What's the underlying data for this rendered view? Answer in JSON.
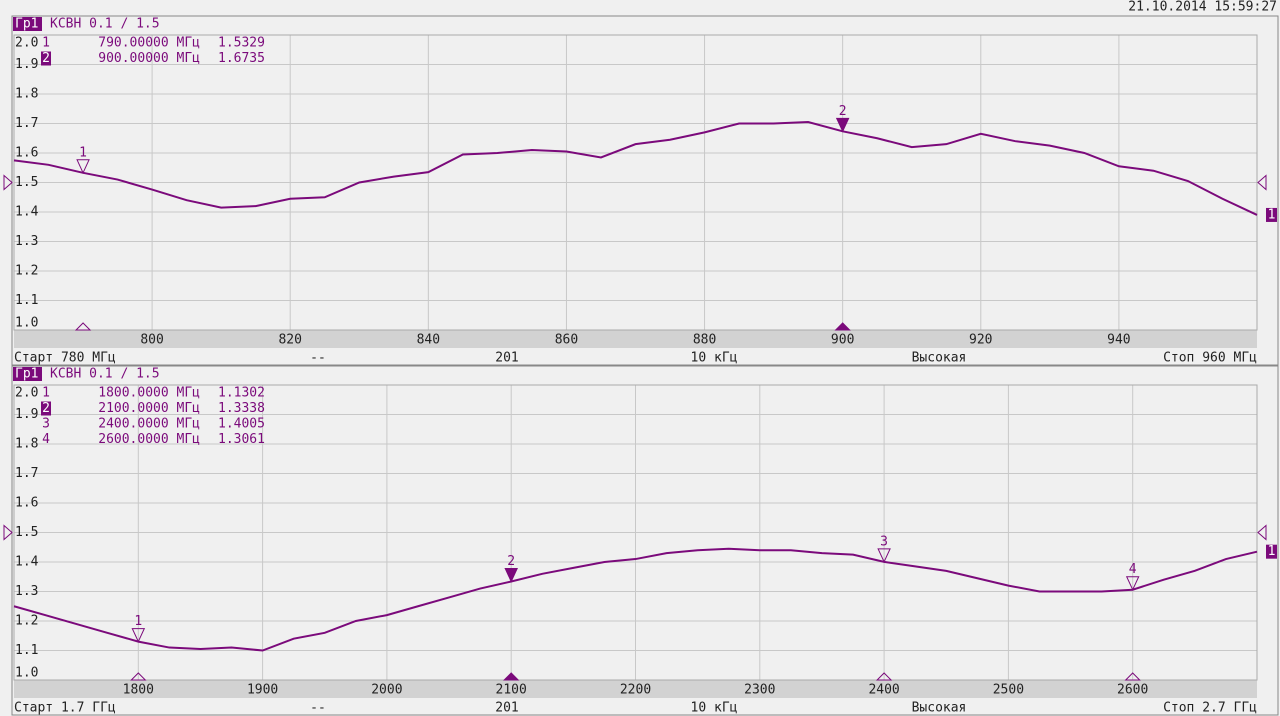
{
  "timestamp": "21.10.2014 15:59:27",
  "chart_data": [
    {
      "type": "line",
      "trace_label": "Гр1",
      "title": "КСВН 0.1 / 1.5",
      "reference": 1.5,
      "grid": true,
      "xlim": [
        780,
        960
      ],
      "xticks": [
        800,
        820,
        840,
        860,
        880,
        900,
        920,
        940
      ],
      "ylim": [
        1.0,
        2.0
      ],
      "yticks": [
        {
          "value": 1.0,
          "label": "1.0"
        },
        1.1,
        1.2,
        1.3,
        1.4,
        1.5,
        1.6,
        1.7,
        1.8,
        1.9,
        {
          "value": 2.0,
          "label": "2.0"
        }
      ],
      "x": [
        780,
        785,
        790,
        795,
        800,
        805,
        810,
        815,
        820,
        825,
        830,
        835,
        840,
        845,
        850,
        855,
        860,
        865,
        870,
        875,
        880,
        885,
        890,
        895,
        900,
        905,
        910,
        915,
        920,
        925,
        930,
        935,
        940,
        945,
        950,
        955,
        960
      ],
      "series": [
        {
          "name": "1",
          "color": "#7b0a7b",
          "values": [
            1.575,
            1.56,
            1.5329,
            1.51,
            1.476,
            1.44,
            1.415,
            1.42,
            1.445,
            1.45,
            1.5,
            1.52,
            1.535,
            1.595,
            1.6,
            1.61,
            1.605,
            1.585,
            1.63,
            1.645,
            1.67,
            1.7,
            1.7,
            1.705,
            1.6735,
            1.65,
            1.62,
            1.63,
            1.665,
            1.64,
            1.625,
            1.6,
            1.555,
            1.54,
            1.505,
            1.445,
            1.39
          ]
        }
      ],
      "markers": [
        {
          "name": "1",
          "x": 790,
          "x_label": "790.00000 МГц",
          "value": 1.5329,
          "active": false
        },
        {
          "name": "2",
          "x": 900,
          "x_label": "900.00000 МГц",
          "value": 1.6735,
          "active": true
        }
      ],
      "footer": [
        "Старт 780 МГц",
        "--",
        "201",
        "10 кГц",
        "Высокая",
        "Стоп 960 МГц"
      ]
    },
    {
      "type": "line",
      "trace_label": "Гр1",
      "title": "КСВН 0.1 / 1.5",
      "reference": 1.5,
      "grid": true,
      "xlim": [
        1700,
        2700
      ],
      "xticks": [
        1800,
        1900,
        2000,
        2100,
        2200,
        2300,
        2400,
        2500,
        2600
      ],
      "ylim": [
        1.0,
        2.0
      ],
      "yticks": [
        {
          "value": 1.0,
          "label": "1.0"
        },
        1.1,
        1.2,
        1.3,
        1.4,
        1.5,
        1.6,
        1.7,
        1.8,
        1.9,
        {
          "value": 2.0,
          "label": "2.0"
        }
      ],
      "x": [
        1700,
        1725,
        1750,
        1775,
        1800,
        1825,
        1850,
        1875,
        1900,
        1925,
        1950,
        1975,
        2000,
        2025,
        2050,
        2075,
        2100,
        2125,
        2150,
        2175,
        2200,
        2225,
        2250,
        2275,
        2300,
        2325,
        2350,
        2375,
        2400,
        2425,
        2450,
        2475,
        2500,
        2525,
        2550,
        2575,
        2600,
        2625,
        2650,
        2675,
        2700
      ],
      "series": [
        {
          "name": "1",
          "color": "#7b0a7b",
          "values": [
            1.25,
            1.22,
            1.19,
            1.16,
            1.1302,
            1.11,
            1.105,
            1.11,
            1.1,
            1.14,
            1.16,
            1.2,
            1.22,
            1.25,
            1.28,
            1.31,
            1.3338,
            1.36,
            1.38,
            1.4,
            1.41,
            1.43,
            1.44,
            1.445,
            1.44,
            1.44,
            1.43,
            1.425,
            1.4005,
            1.385,
            1.37,
            1.345,
            1.32,
            1.3,
            1.3,
            1.3,
            1.3061,
            1.34,
            1.37,
            1.41,
            1.435
          ]
        }
      ],
      "markers": [
        {
          "name": "1",
          "x": 1800,
          "x_label": "1800.0000 МГц",
          "value": 1.1302,
          "active": false
        },
        {
          "name": "2",
          "x": 2100,
          "x_label": "2100.0000 МГц",
          "value": 1.3338,
          "active": true
        },
        {
          "name": "3",
          "x": 2400,
          "x_label": "2400.0000 МГц",
          "value": 1.4005,
          "active": false
        },
        {
          "name": "4",
          "x": 2600,
          "x_label": "2600.0000 МГц",
          "value": 1.3061,
          "active": false
        }
      ],
      "footer": [
        "Старт 1.7 ГГц",
        "--",
        "201",
        "10 кГц",
        "Высокая",
        "Стоп 2.7 ГГц"
      ]
    }
  ]
}
